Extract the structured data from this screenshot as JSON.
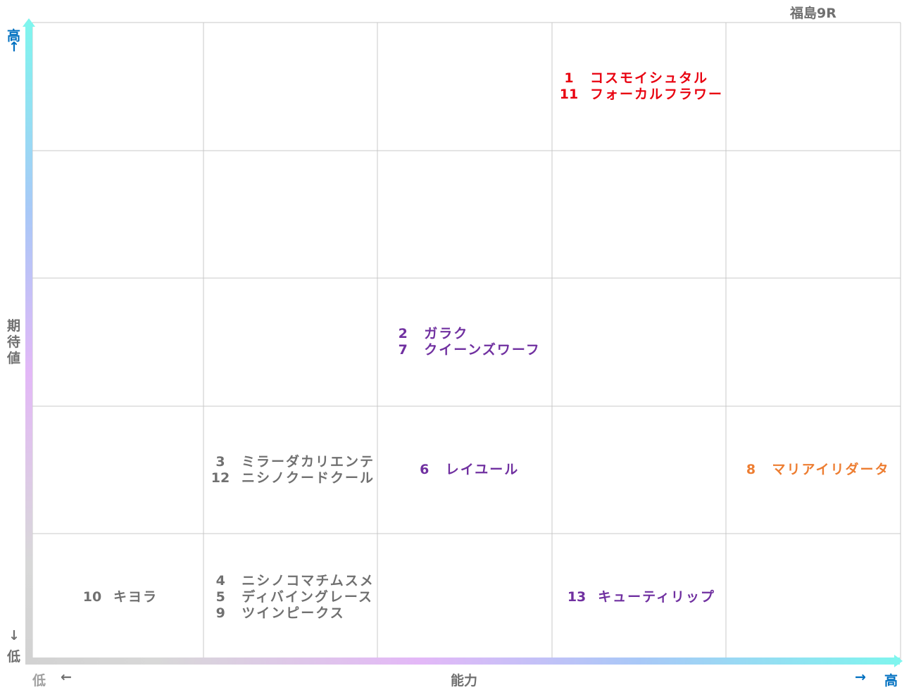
{
  "title": "福島9R",
  "y_axis": {
    "top_label": "高",
    "top_arrow": "↑",
    "label": "期待値",
    "bottom_arrow": "↓",
    "bottom_label": "低"
  },
  "x_axis": {
    "left_label": "低",
    "left_arrow": "←",
    "label": "能力",
    "right_arrow": "→",
    "right_label": "高"
  },
  "colors": {
    "red": "#e8000f",
    "purple": "#7030a0",
    "gray": "#707070",
    "orange": "#ed7d31",
    "blue": "#0070c0",
    "grid": "#c8c8c8"
  },
  "chart_data": {
    "type": "table",
    "columns": 5,
    "rows": 5,
    "cells": [
      {
        "col": 4,
        "row": 5,
        "color": "red",
        "horses": [
          {
            "num": "1",
            "name": "コスモイシュタル"
          },
          {
            "num": "11",
            "name": "フォーカルフラワー"
          }
        ]
      },
      {
        "col": 3,
        "row": 3,
        "color": "purple",
        "horses": [
          {
            "num": "2",
            "name": "ガラク"
          },
          {
            "num": "7",
            "name": "クイーンズワーフ"
          }
        ]
      },
      {
        "col": 2,
        "row": 2,
        "color": "gray",
        "horses": [
          {
            "num": "3",
            "name": "ミラーダカリエンテ"
          },
          {
            "num": "12",
            "name": "ニシノクードクール"
          }
        ]
      },
      {
        "col": 3,
        "row": 2,
        "color": "purple",
        "horses": [
          {
            "num": "6",
            "name": "レイユール"
          }
        ]
      },
      {
        "col": 5,
        "row": 2,
        "color": "orange",
        "horses": [
          {
            "num": "8",
            "name": "マリアイリダータ"
          }
        ]
      },
      {
        "col": 1,
        "row": 1,
        "color": "gray",
        "horses": [
          {
            "num": "10",
            "name": "キヨラ"
          }
        ]
      },
      {
        "col": 2,
        "row": 1,
        "color": "gray",
        "horses": [
          {
            "num": "4",
            "name": "ニシノコマチムスメ"
          },
          {
            "num": "5",
            "name": "ディバイングレース"
          },
          {
            "num": "9",
            "name": "ツインピークス"
          }
        ]
      },
      {
        "col": 4,
        "row": 1,
        "color": "purple",
        "horses": [
          {
            "num": "13",
            "name": "キューティリップ"
          }
        ]
      }
    ]
  }
}
